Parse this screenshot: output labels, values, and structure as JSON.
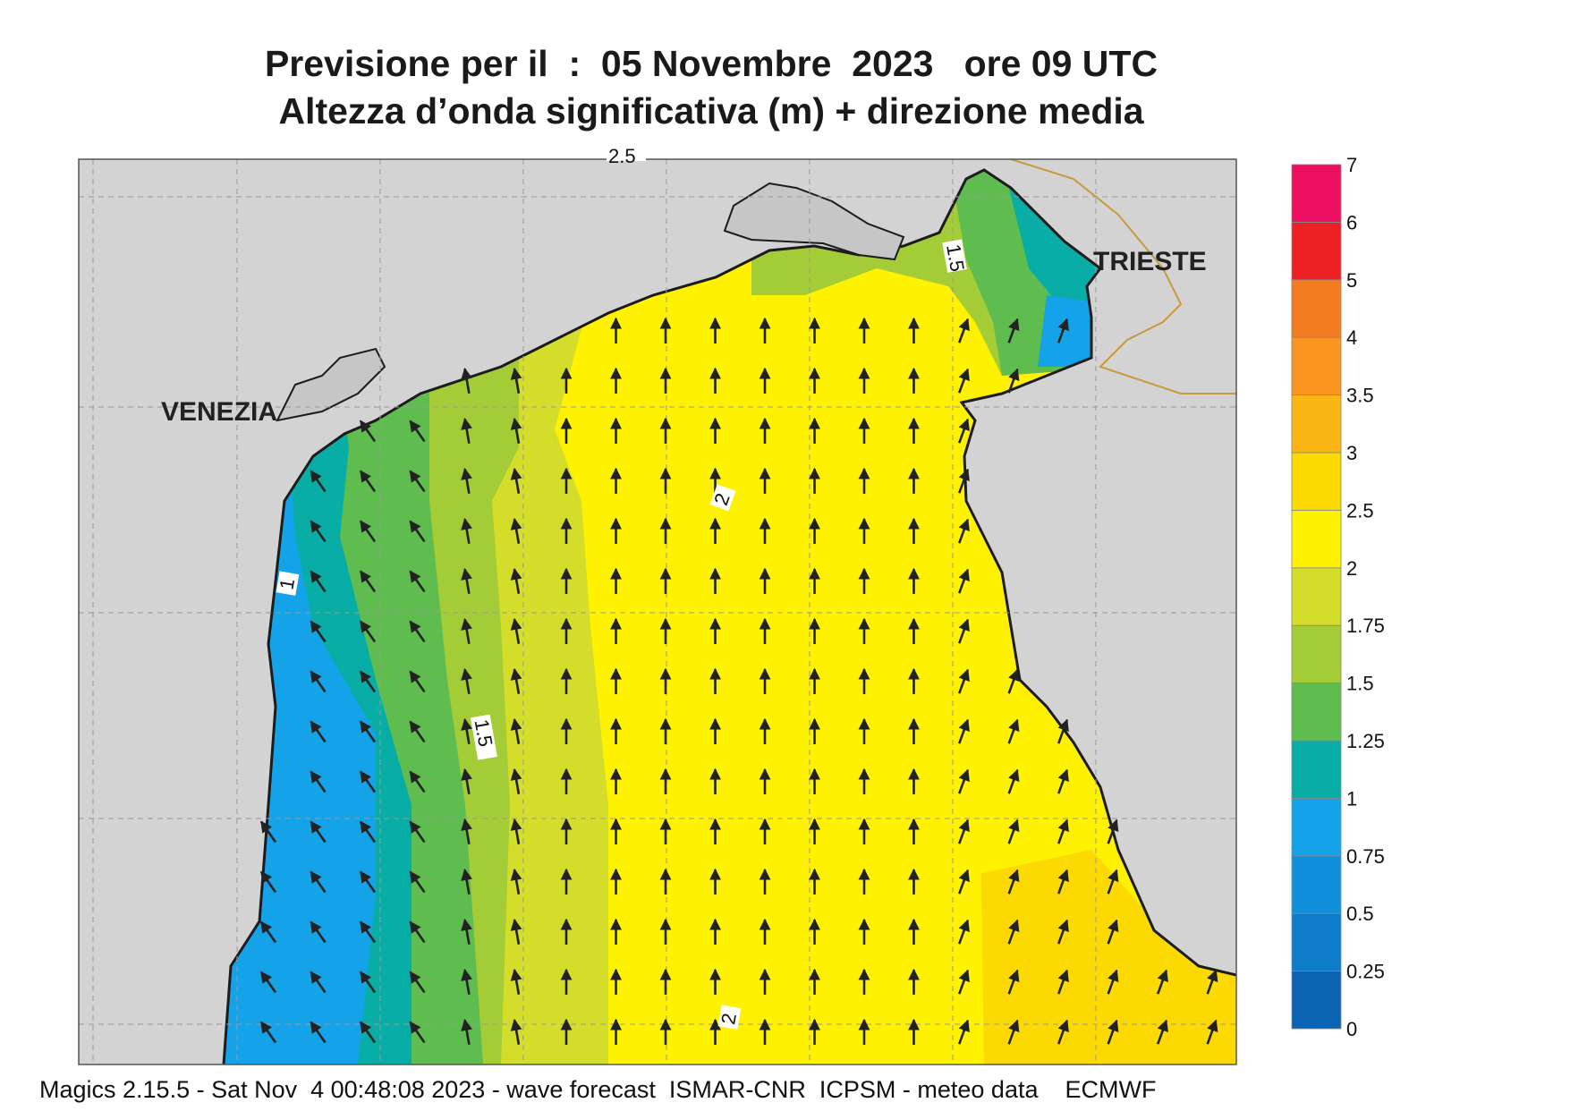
{
  "title": {
    "line1": "Previsione per il  :  05 Novembre  2023   ore 09 UTC",
    "line2": "Altezza d’onda significativa (m) + direzione media"
  },
  "cities": {
    "venezia": "VENEZIA",
    "trieste": "TRIESTE"
  },
  "contour_labels": {
    "top": "2.5",
    "upper_mid": "2",
    "lower_mid": "2",
    "left": "1",
    "mid_left": "1.5",
    "north_east": "1.5"
  },
  "colorbar": {
    "levels": [
      "0",
      "0.25",
      "0.5",
      "0.75",
      "1",
      "1.25",
      "1.5",
      "1.75",
      "2",
      "2.5",
      "3",
      "3.5",
      "4",
      "5",
      "6",
      "7"
    ],
    "colors": [
      "#0b63b4",
      "#0d7cc9",
      "#1090dc",
      "#14a3e8",
      "#08ada5",
      "#5fbc4e",
      "#a3cc37",
      "#d3dd2a",
      "#fff200",
      "#fcd900",
      "#fbb515",
      "#f99520",
      "#f37c20",
      "#ed2124",
      "#ec0f60"
    ]
  },
  "colors": {
    "land": "#d3d3d3",
    "coast": "#1c1c1c",
    "border": "#c79a3c",
    "grid": "#9a9a9a"
  },
  "footer": "Magics 2.15.5 - Sat Nov  4 00:48:08 2023 - wave forecast  ISMAR-CNR  ICPSM - meteo data    ECMWF"
}
